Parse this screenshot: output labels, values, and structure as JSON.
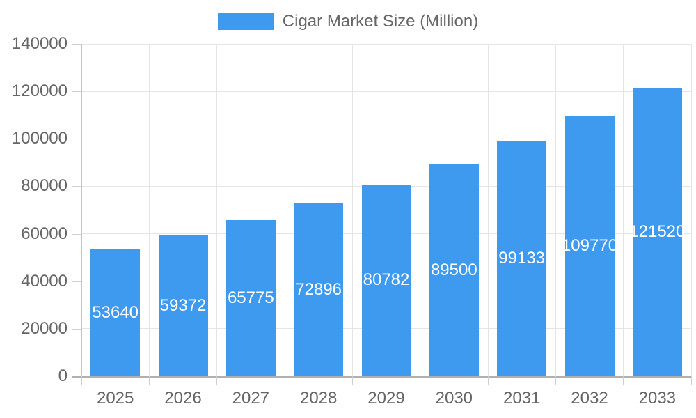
{
  "chart_data": {
    "type": "bar",
    "legend_label": "Cigar Market Size (Million)",
    "legend_position": "top-center",
    "categories": [
      "2025",
      "2026",
      "2027",
      "2028",
      "2029",
      "2030",
      "2031",
      "2032",
      "2033"
    ],
    "series": [
      {
        "name": "Cigar Market Size (Million)",
        "values": [
          53640,
          59372,
          65775,
          72896,
          80782,
          89500,
          99133,
          109770,
          121520
        ]
      }
    ],
    "value_labels": [
      "53640",
      "59372",
      "65775",
      "72896",
      "80782",
      "89500",
      "99133",
      "109770",
      "121520"
    ],
    "ylim": [
      0,
      140000
    ],
    "ytick_step": 20000,
    "ytick_labels": [
      "0",
      "20000",
      "40000",
      "60000",
      "80000",
      "100000",
      "120000",
      "140000"
    ],
    "grid": true,
    "colors": {
      "bar": "#3D9AEE",
      "grid_line": "#e5e5e5",
      "axis_line_x": "#b0b0b0",
      "axis_line_y": "#c5c5c5",
      "tick": "#cfcfcf",
      "axis_text": "#666666",
      "value_label_text": "#ffffff",
      "background": "#ffffff"
    }
  }
}
